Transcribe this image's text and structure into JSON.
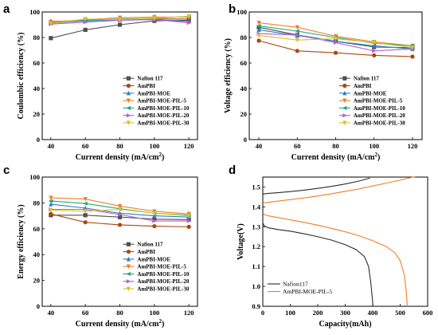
{
  "colors": {
    "Nafion 117": "#505050",
    "AmPBI": "#b0440f",
    "AmPBI-MOE": "#2d7fc1",
    "AmPBI-MOE-PIL-5": "#f07f25",
    "AmPBI-MOE-PIL-10": "#21a87c",
    "AmPBI-MOE-PIL-20": "#b65ed6",
    "AmPBI-MOE-PIL-30": "#d9c22a"
  },
  "chart_data": [
    {
      "panel": "a",
      "type": "line",
      "xlabel": "Current density (mA/cm2)",
      "ylabel": "Coulombic efficiency (%)",
      "x": [
        40,
        60,
        80,
        100,
        120
      ],
      "xticks": [
        40,
        60,
        80,
        100,
        120
      ],
      "yticks": [
        0,
        20,
        40,
        60,
        80,
        100
      ],
      "xlim": [
        35,
        125
      ],
      "ylim": [
        0,
        100
      ],
      "legend_position": "bottom-right",
      "series": [
        {
          "name": "Nafion 117",
          "marker": "square",
          "values": [
            79.5,
            86,
            90,
            93,
            93.5
          ]
        },
        {
          "name": "AmPBI",
          "marker": "circle",
          "values": [
            92.5,
            93.5,
            94,
            94.5,
            94.5
          ]
        },
        {
          "name": "AmPBI-MOE",
          "marker": "triangle-up",
          "values": [
            91.5,
            93,
            94,
            94,
            92.5
          ]
        },
        {
          "name": "AmPBI-MOE-PIL-5",
          "marker": "triangle-down",
          "values": [
            92,
            94,
            95.5,
            96,
            96
          ]
        },
        {
          "name": "AmPBI-MOE-PIL-10",
          "marker": "triangle-left",
          "values": [
            91,
            93.5,
            94.5,
            95,
            96.5
          ]
        },
        {
          "name": "AmPBI-MOE-PIL-20",
          "marker": "triangle-right",
          "values": [
            90.5,
            92,
            93.5,
            94,
            91.5
          ]
        },
        {
          "name": "AmPBI-MOE-PIL-30",
          "marker": "triangle-down",
          "values": [
            91,
            94.5,
            94,
            95,
            96.5
          ]
        }
      ]
    },
    {
      "panel": "b",
      "type": "line",
      "xlabel": "Current density (mA/cm2)",
      "ylabel": "Voltage efficiency (%)",
      "x": [
        40,
        60,
        80,
        100,
        120
      ],
      "xticks": [
        40,
        60,
        80,
        100,
        120
      ],
      "yticks": [
        0,
        20,
        40,
        60,
        80,
        100
      ],
      "xlim": [
        35,
        125
      ],
      "ylim": [
        0,
        100
      ],
      "legend_position": "bottom-right",
      "series": [
        {
          "name": "Nafion 117",
          "marker": "square",
          "values": [
            88,
            82,
            77,
            72.5,
            72
          ]
        },
        {
          "name": "AmPBI",
          "marker": "circle",
          "values": [
            77.5,
            69.5,
            68,
            66,
            65
          ]
        },
        {
          "name": "AmPBI-MOE",
          "marker": "triangle-up",
          "values": [
            86,
            81.5,
            77,
            73.5,
            71
          ]
        },
        {
          "name": "AmPBI-MOE-PIL-5",
          "marker": "triangle-down",
          "values": [
            91.5,
            88,
            81,
            76.5,
            73.5
          ]
        },
        {
          "name": "AmPBI-MOE-PIL-10",
          "marker": "triangle-left",
          "values": [
            89,
            85,
            80,
            75.5,
            73.5
          ]
        },
        {
          "name": "AmPBI-MOE-PIL-20",
          "marker": "triangle-right",
          "values": [
            83,
            82,
            76,
            69.5,
            71
          ]
        },
        {
          "name": "AmPBI-MOE-PIL-30",
          "marker": "triangle-down",
          "values": [
            81.5,
            78,
            79,
            76,
            72
          ]
        }
      ]
    },
    {
      "panel": "c",
      "type": "line",
      "xlabel": "Current density (mA/cm2)",
      "ylabel": "Energy efficiency (%)",
      "x": [
        40,
        60,
        80,
        100,
        120
      ],
      "xticks": [
        40,
        60,
        80,
        100,
        120
      ],
      "yticks": [
        0,
        20,
        40,
        60,
        80,
        100
      ],
      "xlim": [
        35,
        125
      ],
      "ylim": [
        0,
        100
      ],
      "legend_position": "bottom-right",
      "series": [
        {
          "name": "Nafion 117",
          "marker": "square",
          "values": [
            70.5,
            70.5,
            69,
            67.5,
            67
          ]
        },
        {
          "name": "AmPBI",
          "marker": "circle",
          "values": [
            71.5,
            65,
            63,
            62,
            61.5
          ]
        },
        {
          "name": "AmPBI-MOE",
          "marker": "triangle-up",
          "values": [
            79,
            76,
            72,
            70,
            69
          ]
        },
        {
          "name": "AmPBI-MOE-PIL-5",
          "marker": "triangle-down",
          "values": [
            84,
            83,
            77.5,
            73.5,
            71.5
          ]
        },
        {
          "name": "AmPBI-MOE-PIL-10",
          "marker": "triangle-left",
          "values": [
            81.5,
            79.5,
            75.5,
            72,
            70.5
          ]
        },
        {
          "name": "AmPBI-MOE-PIL-20",
          "marker": "triangle-right",
          "values": [
            75,
            75,
            71,
            66,
            66
          ]
        },
        {
          "name": "AmPBI-MOE-PIL-30",
          "marker": "triangle-down",
          "values": [
            74.5,
            73.5,
            75,
            72,
            70
          ]
        }
      ]
    },
    {
      "panel": "d",
      "type": "line",
      "xlabel": "Capacity(mAh)",
      "ylabel": "Voltage(V)",
      "xticks": [
        0,
        100,
        200,
        300,
        400,
        500,
        600
      ],
      "yticks": [
        0.9,
        1.0,
        1.1,
        1.2,
        1.3,
        1.4,
        1.5
      ],
      "xlim": [
        0,
        600
      ],
      "ylim": [
        0.9,
        1.55
      ],
      "legend_position": "bottom-left",
      "series": [
        {
          "name": "Nafion117",
          "color": "#2b2b2b",
          "charge": [
            [
              0,
              1.465
            ],
            [
              20,
              1.468
            ],
            [
              60,
              1.472
            ],
            [
              100,
              1.477
            ],
            [
              150,
              1.484
            ],
            [
              200,
              1.493
            ],
            [
              250,
              1.503
            ],
            [
              300,
              1.515
            ],
            [
              350,
              1.53
            ],
            [
              390,
              1.545
            ]
          ],
          "discharge": [
            [
              0,
              1.32
            ],
            [
              5,
              1.305
            ],
            [
              20,
              1.295
            ],
            [
              60,
              1.285
            ],
            [
              100,
              1.278
            ],
            [
              150,
              1.265
            ],
            [
              200,
              1.25
            ],
            [
              250,
              1.233
            ],
            [
              300,
              1.21
            ],
            [
              340,
              1.185
            ],
            [
              370,
              1.15
            ],
            [
              385,
              1.1
            ],
            [
              393,
              1.02
            ],
            [
              398,
              0.95
            ],
            [
              401,
              0.9
            ]
          ]
        },
        {
          "name": "AmPBI-MOE-PIL-5",
          "color": "#f07f25",
          "charge": [
            [
              0,
              1.42
            ],
            [
              20,
              1.423
            ],
            [
              60,
              1.43
            ],
            [
              100,
              1.437
            ],
            [
              150,
              1.445
            ],
            [
              200,
              1.455
            ],
            [
              250,
              1.466
            ],
            [
              300,
              1.478
            ],
            [
              350,
              1.49
            ],
            [
              400,
              1.505
            ],
            [
              450,
              1.52
            ],
            [
              500,
              1.535
            ],
            [
              540,
              1.548
            ],
            [
              555,
              1.552
            ]
          ],
          "discharge": [
            [
              0,
              1.37
            ],
            [
              5,
              1.362
            ],
            [
              20,
              1.355
            ],
            [
              60,
              1.345
            ],
            [
              100,
              1.335
            ],
            [
              150,
              1.322
            ],
            [
              200,
              1.308
            ],
            [
              250,
              1.292
            ],
            [
              300,
              1.275
            ],
            [
              350,
              1.255
            ],
            [
              400,
              1.23
            ],
            [
              450,
              1.2
            ],
            [
              480,
              1.17
            ],
            [
              500,
              1.13
            ],
            [
              515,
              1.06
            ],
            [
              522,
              0.98
            ],
            [
              526,
              0.9
            ]
          ]
        }
      ]
    }
  ]
}
